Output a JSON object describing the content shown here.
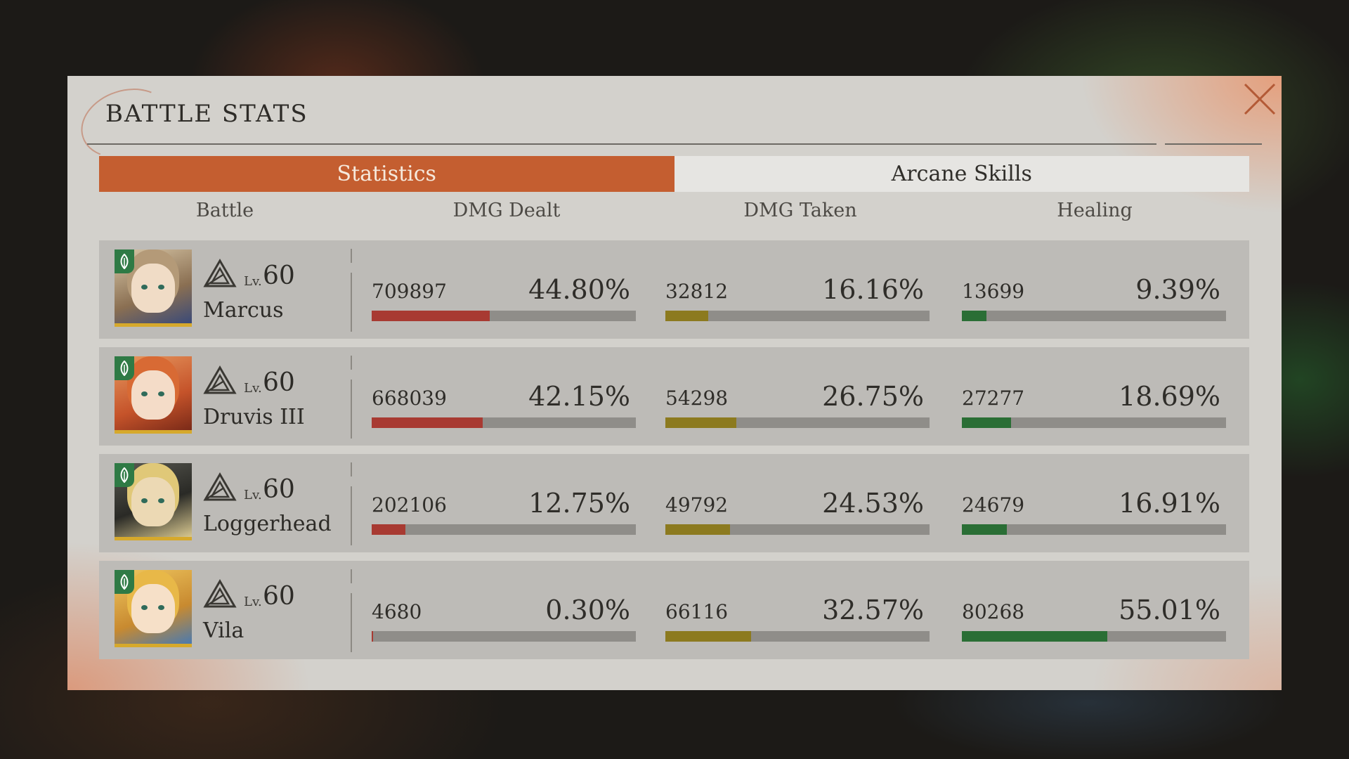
{
  "header": {
    "title": "BATTLE STATS"
  },
  "tabs": [
    {
      "label": "Statistics",
      "active": true
    },
    {
      "label": "Arcane Skills",
      "active": false
    }
  ],
  "columns": {
    "battle": "Battle",
    "dmg_dealt": "DMG Dealt",
    "dmg_taken": "DMG Taken",
    "healing": "Healing"
  },
  "colors": {
    "accent": "#c45e30",
    "dmg_dealt_bar": "#a83a32",
    "dmg_taken_bar": "#8c7a1f",
    "healing_bar": "#2a6e35",
    "element_badge": "#2f7a45"
  },
  "icons": {
    "close": "close-icon",
    "element": "leaf-element-icon",
    "rank": "triangle-rank-icon"
  },
  "characters": [
    {
      "name": "Marcus",
      "level_prefix": "Lv.",
      "level": "60",
      "dmg_dealt": {
        "value": "709897",
        "percent": "44.80%",
        "fraction": 0.448
      },
      "dmg_taken": {
        "value": "32812",
        "percent": "16.16%",
        "fraction": 0.1616
      },
      "healing": {
        "value": "13699",
        "percent": "9.39%",
        "fraction": 0.0939
      }
    },
    {
      "name": "Druvis III",
      "level_prefix": "Lv.",
      "level": "60",
      "dmg_dealt": {
        "value": "668039",
        "percent": "42.15%",
        "fraction": 0.4215
      },
      "dmg_taken": {
        "value": "54298",
        "percent": "26.75%",
        "fraction": 0.2675
      },
      "healing": {
        "value": "27277",
        "percent": "18.69%",
        "fraction": 0.1869
      }
    },
    {
      "name": "Loggerhead",
      "level_prefix": "Lv.",
      "level": "60",
      "dmg_dealt": {
        "value": "202106",
        "percent": "12.75%",
        "fraction": 0.1275
      },
      "dmg_taken": {
        "value": "49792",
        "percent": "24.53%",
        "fraction": 0.2453
      },
      "healing": {
        "value": "24679",
        "percent": "16.91%",
        "fraction": 0.1691
      }
    },
    {
      "name": "Vila",
      "level_prefix": "Lv.",
      "level": "60",
      "dmg_dealt": {
        "value": "4680",
        "percent": "0.30%",
        "fraction": 0.003
      },
      "dmg_taken": {
        "value": "66116",
        "percent": "32.57%",
        "fraction": 0.3257
      },
      "healing": {
        "value": "80268",
        "percent": "55.01%",
        "fraction": 0.5501
      }
    }
  ]
}
